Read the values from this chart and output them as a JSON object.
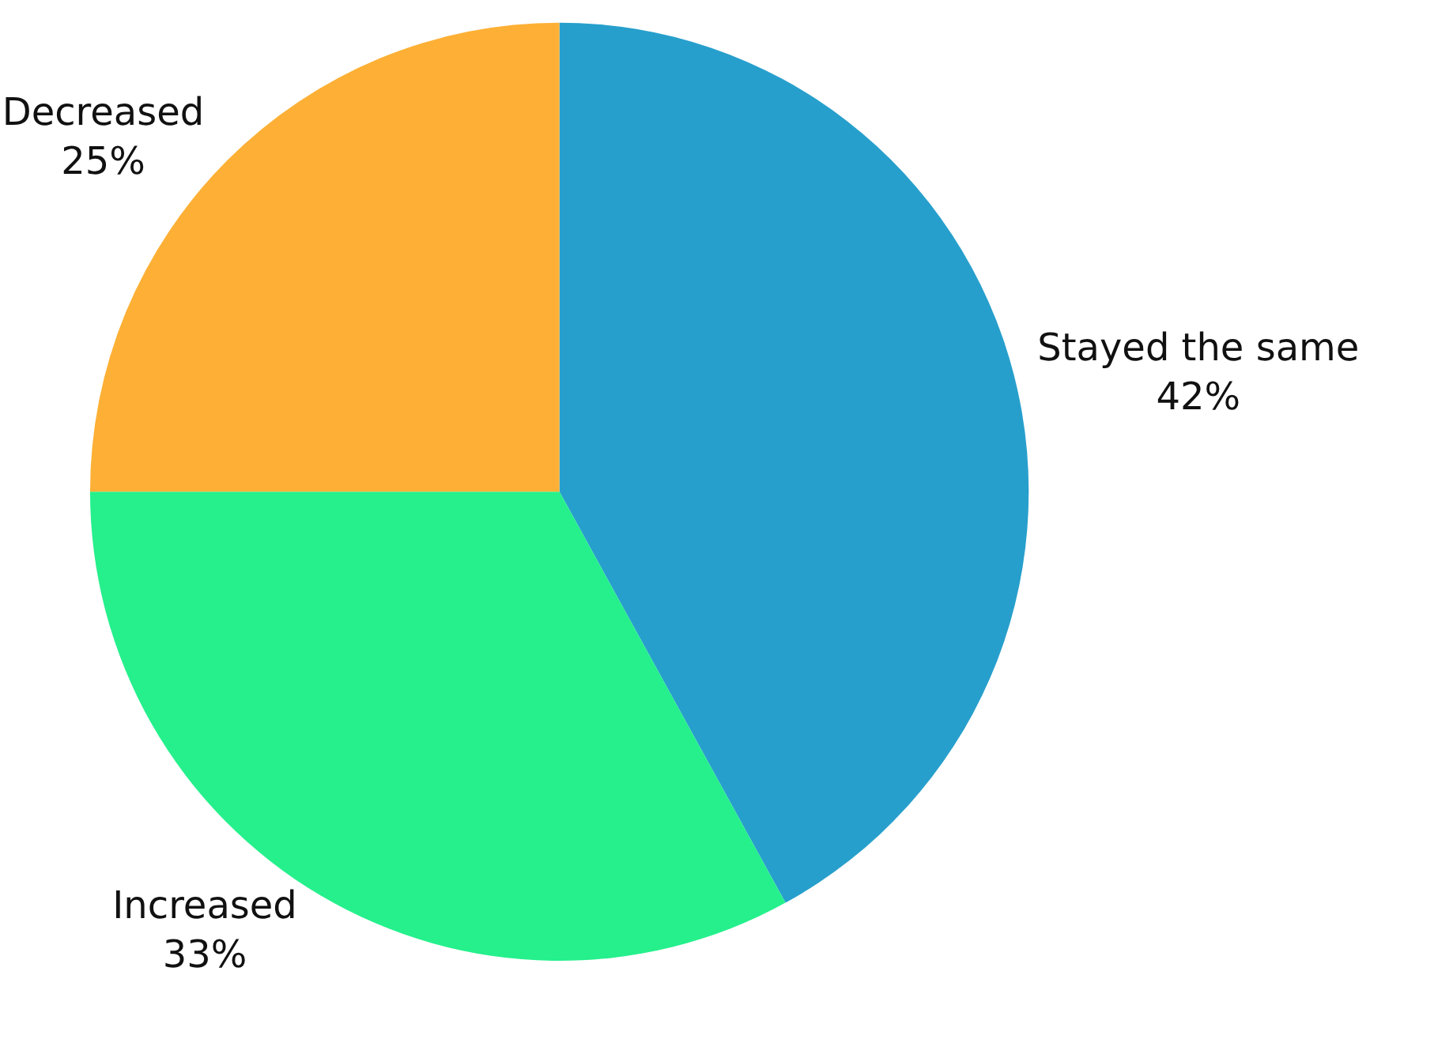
{
  "chart_data": {
    "type": "pie",
    "categories": [
      "Stayed the same",
      "Increased",
      "Decreased"
    ],
    "values": [
      42,
      33,
      25
    ],
    "value_labels": [
      "42%",
      "33%",
      "25%"
    ],
    "colors": [
      "#279fcc",
      "#25f08c",
      "#fdb035"
    ],
    "legend": false
  }
}
